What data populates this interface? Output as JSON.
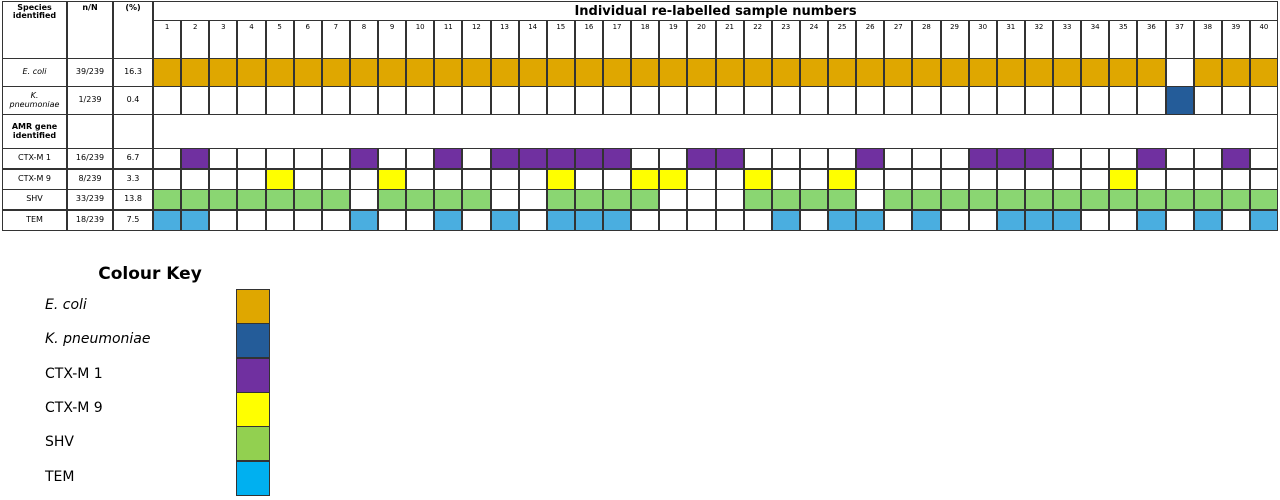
{
  "table": {
    "headers": [
      "Species identified",
      "n/N",
      "(%)"
    ],
    "sample_header": "Individual re-labelled sample numbers",
    "samples": [
      1,
      2,
      3,
      4,
      5,
      6,
      7,
      8,
      9,
      10,
      11,
      12,
      13,
      14,
      15,
      16,
      17,
      18,
      19,
      20,
      21,
      22,
      23,
      24,
      25,
      26,
      27,
      28,
      29,
      30,
      31,
      32,
      33,
      34,
      35,
      36,
      37,
      38,
      39,
      40
    ],
    "species_rows": [
      {
        "label": "E. coli",
        "italic": true,
        "n": "39/239",
        "pct": 16.3,
        "color": "#dfa700",
        "present": [
          1,
          1,
          1,
          1,
          1,
          1,
          1,
          1,
          1,
          1,
          1,
          1,
          1,
          1,
          1,
          1,
          1,
          1,
          1,
          1,
          1,
          1,
          1,
          1,
          1,
          1,
          1,
          1,
          1,
          1,
          1,
          1,
          1,
          1,
          1,
          1,
          0,
          1,
          1,
          1
        ]
      },
      {
        "label": "K. pneumoniae",
        "italic": true,
        "n": "1/239",
        "pct": 0.4,
        "color": "#245c99",
        "present": [
          0,
          0,
          0,
          0,
          0,
          0,
          0,
          0,
          0,
          0,
          0,
          0,
          0,
          0,
          0,
          0,
          0,
          0,
          0,
          0,
          0,
          0,
          0,
          0,
          0,
          0,
          0,
          0,
          0,
          0,
          0,
          0,
          0,
          0,
          0,
          0,
          1,
          0,
          0,
          0
        ]
      }
    ],
    "section_label": "AMR gene identified",
    "gene_rows": [
      {
        "label": "CTX-M 1",
        "italic": false,
        "n": "16/239",
        "pct": 6.7,
        "color": "#7030a0",
        "present": [
          0,
          1,
          0,
          0,
          0,
          0,
          0,
          1,
          0,
          0,
          1,
          0,
          1,
          1,
          1,
          1,
          1,
          0,
          0,
          1,
          1,
          0,
          0,
          0,
          0,
          1,
          0,
          0,
          0,
          1,
          1,
          1,
          0,
          0,
          0,
          1,
          0,
          0,
          1,
          0
        ]
      },
      {
        "label": "CTX-M 9",
        "italic": false,
        "n": "8/239",
        "pct": 3.3,
        "color": "#ffff00",
        "present": [
          0,
          0,
          0,
          0,
          1,
          0,
          0,
          0,
          1,
          0,
          0,
          0,
          0,
          0,
          1,
          0,
          0,
          1,
          1,
          0,
          0,
          1,
          0,
          0,
          1,
          0,
          0,
          0,
          0,
          0,
          0,
          0,
          0,
          0,
          1,
          0,
          0,
          0,
          0,
          0
        ]
      },
      {
        "label": "SHV",
        "italic": false,
        "n": "33/239",
        "pct": 13.8,
        "color": "#8ad672",
        "present": [
          1,
          1,
          1,
          1,
          1,
          1,
          1,
          0,
          1,
          1,
          1,
          1,
          0,
          0,
          1,
          1,
          1,
          1,
          0,
          0,
          0,
          1,
          1,
          1,
          1,
          0,
          1,
          1,
          1,
          1,
          1,
          1,
          1,
          1,
          1,
          1,
          1,
          1,
          1,
          1
        ]
      },
      {
        "label": "TEM",
        "italic": false,
        "n": "18/239",
        "pct": 7.5,
        "color": "#4aaee0",
        "present": [
          1,
          1,
          0,
          0,
          0,
          0,
          0,
          1,
          0,
          0,
          1,
          0,
          1,
          0,
          1,
          1,
          1,
          0,
          0,
          0,
          0,
          0,
          1,
          0,
          1,
          1,
          0,
          1,
          0,
          0,
          1,
          1,
          1,
          0,
          0,
          1,
          0,
          1,
          0,
          1
        ]
      }
    ]
  },
  "key": {
    "title": "Colour Key",
    "items": [
      {
        "label": "E. coli",
        "italic": true,
        "color": "#dfa700"
      },
      {
        "label": "K. pneumoniae",
        "italic": true,
        "color": "#245c99"
      },
      {
        "label": "CTX-M 1",
        "italic": false,
        "color": "#7030a0"
      },
      {
        "label": "CTX-M 9",
        "italic": false,
        "color": "#ffff00"
      },
      {
        "label": "SHV",
        "italic": false,
        "color": "#92d050"
      },
      {
        "label": "TEM",
        "italic": false,
        "color": "#00b0f0"
      }
    ]
  }
}
